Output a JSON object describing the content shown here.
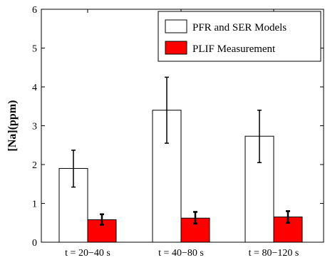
{
  "chart_data": {
    "type": "bar",
    "categories": [
      "t = 20−40 s",
      "t = 40−80 s",
      "t = 80−120 s"
    ],
    "series": [
      {
        "name": "PFR and SER Models",
        "values": [
          1.9,
          3.4,
          2.73
        ],
        "error_low": [
          1.42,
          2.55,
          2.05
        ],
        "error_high": [
          2.37,
          4.25,
          3.4
        ],
        "color": "#ffffff"
      },
      {
        "name": "PLIF Measurement",
        "values": [
          0.58,
          0.62,
          0.65
        ],
        "error_low": [
          0.45,
          0.48,
          0.5
        ],
        "error_high": [
          0.72,
          0.78,
          0.8
        ],
        "color": "#ff0000"
      }
    ],
    "ylabel": "[Na](ppm)",
    "xlabel": "",
    "ylim": [
      0,
      6
    ],
    "yticks": [
      0,
      1,
      2,
      3,
      4,
      5,
      6
    ],
    "legend_position": "top-right",
    "grid": false
  }
}
